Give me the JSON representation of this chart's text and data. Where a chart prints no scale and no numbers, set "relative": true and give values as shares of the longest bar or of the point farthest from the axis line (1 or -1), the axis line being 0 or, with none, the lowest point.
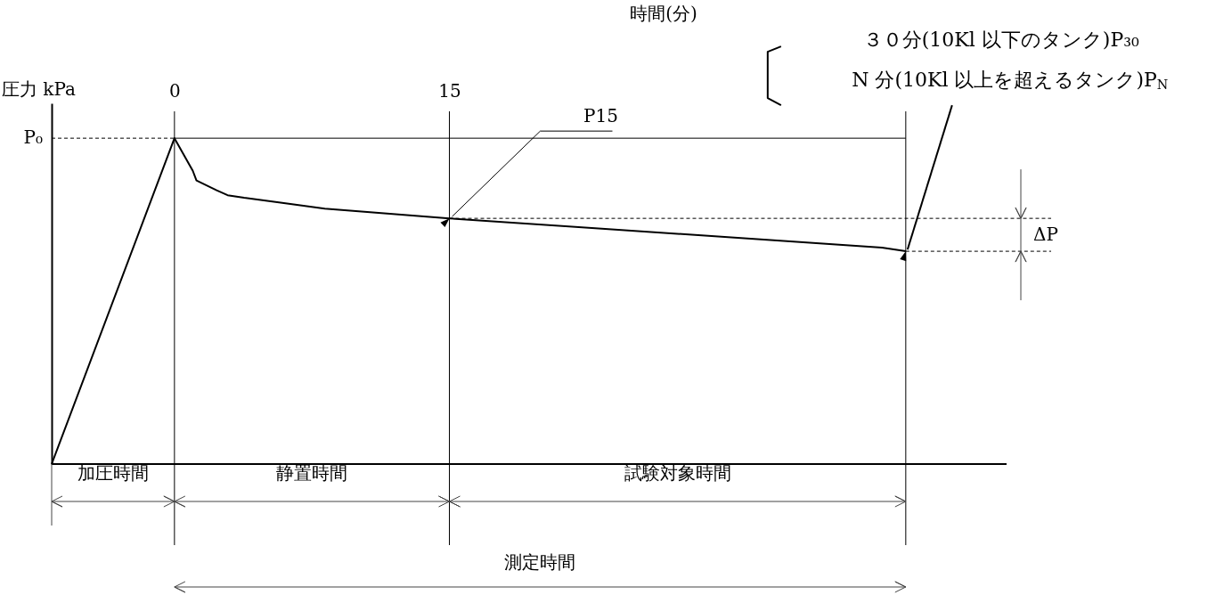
{
  "chart_data": {
    "type": "line",
    "relative": true,
    "xlabel": "時間(分)",
    "ylabel": "圧力 kPa",
    "xlim": [
      -6.7,
      45.4
    ],
    "xticks": [
      0,
      15
    ],
    "x": [
      -6.7,
      0,
      1.0,
      1.2,
      2.3,
      2.9,
      3.8,
      5.7,
      8.2,
      15,
      38.6,
      39.9
    ],
    "series": [
      {
        "color": "#000000",
        "values": [
          0,
          1,
          0.9,
          0.87,
          0.84,
          0.825,
          0.817,
          0.803,
          0.784,
          0.754,
          0.664,
          0.653
        ]
      }
    ],
    "ref_lines": [
      {
        "axis": "x",
        "value": 0,
        "label": null
      },
      {
        "axis": "x",
        "value": 15,
        "label": null
      },
      {
        "axis": "x",
        "value": 39.9,
        "label": null
      },
      {
        "axis": "y",
        "value": 1,
        "label": "P₀",
        "line_style": "dashed"
      }
    ],
    "annotations": [
      {
        "text": "P15",
        "x": 15,
        "y": 0.754
      },
      {
        "text": "N 分(10Kl 以上を超えるタンク)P$_{N}$",
        "x": 39.9,
        "y": 0.653
      },
      "３０分(10Kl 以下のタンク)P₃₀",
      "ΔP",
      "加圧時間",
      "静置時間",
      "試験対象時間",
      "測定時間"
    ],
    "grid": false,
    "legend": false,
    "marker": "none",
    "line_style": "solid"
  }
}
